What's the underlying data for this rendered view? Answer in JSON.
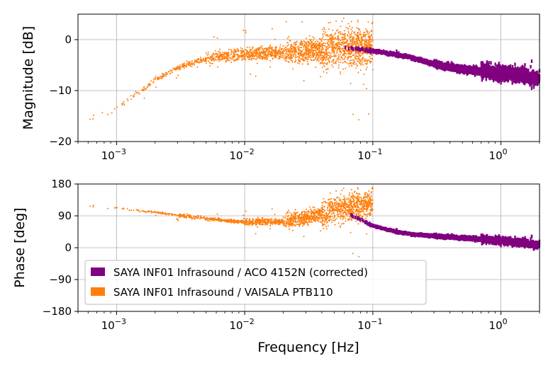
{
  "chart_data": [
    {
      "type": "scatter",
      "panel": "magnitude",
      "xscale": "log",
      "xlim": [
        0.0005,
        2
      ],
      "ylim": [
        -20,
        5
      ],
      "xticks": [
        {
          "value": 0.001,
          "label": "10−3"
        },
        {
          "value": 0.01,
          "label": "10−2"
        },
        {
          "value": 0.1,
          "label": "10−1"
        },
        {
          "value": 1,
          "label": "100"
        }
      ],
      "yticks": [
        {
          "value": 0,
          "label": "0"
        },
        {
          "value": -10,
          "label": "−10"
        },
        {
          "value": -20,
          "label": "−20"
        }
      ],
      "ylabel": "Magnitude [dB]",
      "grid": true,
      "series": [
        {
          "name": "SAYA INF01 Infrasound / VAISALA PTB110",
          "color": "#ff7f0e",
          "freq_range": [
            0.0005,
            0.1
          ],
          "trend": [
            [
              0.0005,
              -16.5
            ],
            [
              0.001,
              -13.5
            ],
            [
              0.002,
              -8
            ],
            [
              0.003,
              -5.5
            ],
            [
              0.005,
              -3.8
            ],
            [
              0.01,
              -2.8
            ],
            [
              0.02,
              -2.5
            ],
            [
              0.03,
              -2.3
            ],
            [
              0.05,
              -1.8
            ],
            [
              0.1,
              -1.2
            ]
          ]
        },
        {
          "name": "SAYA INF01 Infrasound / ACO 4152N (corrected)",
          "color": "#800080",
          "freq_range": [
            0.06,
            2
          ],
          "trend": [
            [
              0.06,
              -1.5
            ],
            [
              0.1,
              -2.2
            ],
            [
              0.2,
              -3.5
            ],
            [
              0.3,
              -4.8
            ],
            [
              0.5,
              -5.8
            ],
            [
              1,
              -6.5
            ],
            [
              2,
              -7.5
            ]
          ]
        }
      ]
    },
    {
      "type": "scatter",
      "panel": "phase",
      "xscale": "log",
      "xlim": [
        0.0005,
        2
      ],
      "ylim": [
        -180,
        180
      ],
      "xticks": [
        {
          "value": 0.001,
          "label": "10−3"
        },
        {
          "value": 0.01,
          "label": "10−2"
        },
        {
          "value": 0.1,
          "label": "10−1"
        },
        {
          "value": 1,
          "label": "100"
        }
      ],
      "yticks": [
        {
          "value": 180,
          "label": "180"
        },
        {
          "value": 90,
          "label": "90"
        },
        {
          "value": 0,
          "label": "0"
        },
        {
          "value": -90,
          "label": "−90"
        },
        {
          "value": -180,
          "label": "−180"
        }
      ],
      "ylabel": "Phase [deg]",
      "xlabel": "Frequency [Hz]",
      "grid": true,
      "legend_position": "lower-left",
      "series": [
        {
          "name": "SAYA INF01 Infrasound / ACO 4152N (corrected)",
          "color": "#800080",
          "freq_range": [
            0.06,
            2
          ],
          "trend": [
            [
              0.06,
              100
            ],
            [
              0.08,
              80
            ],
            [
              0.1,
              62
            ],
            [
              0.15,
              45
            ],
            [
              0.2,
              38
            ],
            [
              0.3,
              33
            ],
            [
              0.5,
              28
            ],
            [
              1,
              20
            ],
            [
              2,
              8
            ]
          ]
        },
        {
          "name": "SAYA INF01 Infrasound / VAISALA PTB110",
          "color": "#ff7f0e",
          "freq_range": [
            0.0005,
            0.1
          ],
          "trend": [
            [
              0.0005,
              120
            ],
            [
              0.001,
              112
            ],
            [
              0.002,
              100
            ],
            [
              0.003,
              92
            ],
            [
              0.005,
              82
            ],
            [
              0.01,
              72
            ],
            [
              0.02,
              75
            ],
            [
              0.03,
              85
            ],
            [
              0.05,
              105
            ],
            [
              0.1,
              125
            ]
          ]
        }
      ]
    }
  ]
}
